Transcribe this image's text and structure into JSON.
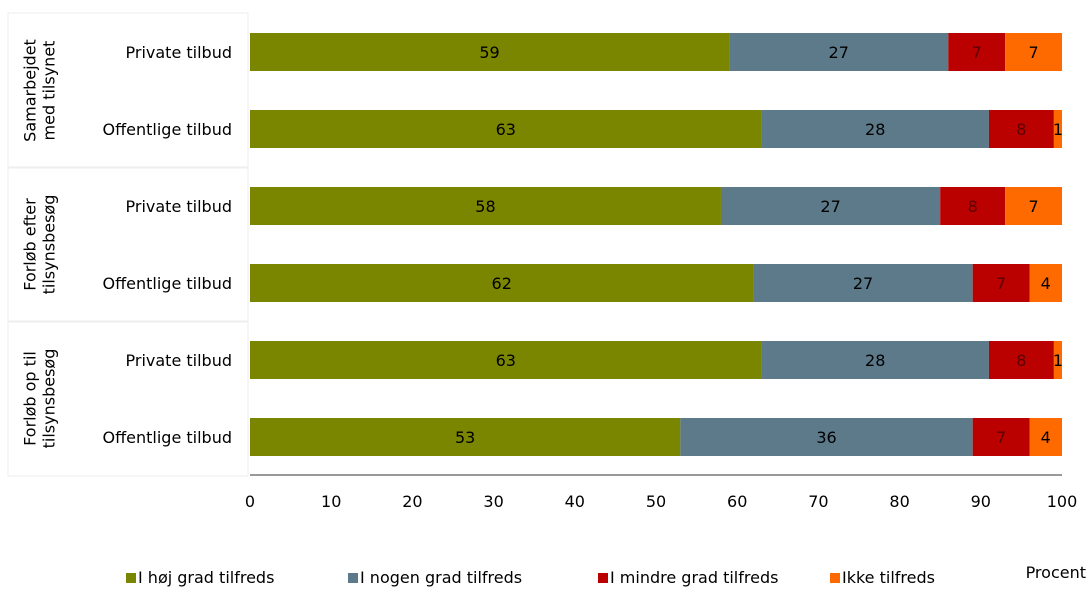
{
  "chart_data": {
    "type": "bar",
    "orientation": "horizontal",
    "stacked": true,
    "xlabel": "Procent",
    "xlim": [
      0,
      100
    ],
    "xticks": [
      0,
      10,
      20,
      30,
      40,
      50,
      60,
      70,
      80,
      90,
      100
    ],
    "grid": false,
    "legend_position": "bottom",
    "groups": [
      {
        "label_lines": [
          "Samarbejdet",
          "med tilsynet"
        ],
        "rows": [
          {
            "label": "Private  tilbud",
            "values": [
              59,
              27,
              7,
              7
            ]
          },
          {
            "label": "Offentlige tilbud",
            "values": [
              63,
              28,
              8,
              1
            ]
          }
        ]
      },
      {
        "label_lines": [
          "Forløb efter",
          "tilsynsbesøg"
        ],
        "rows": [
          {
            "label": "Private  tilbud",
            "values": [
              58,
              27,
              8,
              7
            ]
          },
          {
            "label": "Offentlige tilbud",
            "values": [
              62,
              27,
              7,
              4
            ]
          }
        ]
      },
      {
        "label_lines": [
          "Forløb op til",
          "tilsynsbesøg"
        ],
        "rows": [
          {
            "label": "Private  tilbud",
            "values": [
              63,
              28,
              8,
              1
            ]
          },
          {
            "label": "Offentlige tilbud",
            "values": [
              53,
              36,
              7,
              4
            ]
          }
        ]
      }
    ],
    "series": [
      {
        "name": "I høj grad tilfreds",
        "color": "#7a8500"
      },
      {
        "name": "I nogen grad tilfreds",
        "color": "#5c7a89"
      },
      {
        "name": "I mindre grad tilfreds",
        "color": "#bb0000"
      },
      {
        "name": "Ikke tilfreds",
        "color": "#ff6a00"
      }
    ]
  }
}
